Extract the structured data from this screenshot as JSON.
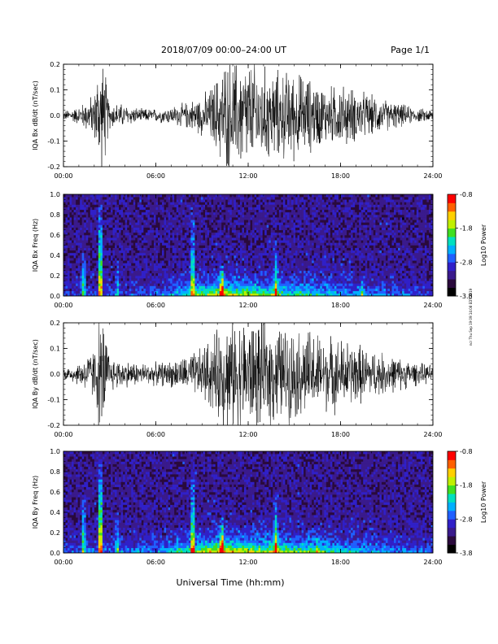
{
  "header": {
    "title": "2018/07/09   00:00–24:00 UT",
    "page": "Page 1/1"
  },
  "footer": {
    "xlabel": "Universal Time (hh:mm)",
    "side_note": "ncr Thu Sep 19 09:14:08 EDT 2019"
  },
  "colors": {
    "background": "#ffffff",
    "trace": "#000000",
    "colormap": [
      "#000000",
      "#2a0a3c",
      "#3a1a8c",
      "#3020c8",
      "#2060ff",
      "#00b0ff",
      "#00e0c0",
      "#40e020",
      "#c0f000",
      "#ffd000",
      "#ff6000",
      "#ff0000"
    ]
  },
  "chart_data": [
    {
      "id": "bx-dbdt",
      "type": "line",
      "ylabel": "IQA Bx dB/dt (nT/sec)",
      "xlim": [
        "00:00",
        "24:00"
      ],
      "xticks": [
        "00:00",
        "06:00",
        "12:00",
        "18:00",
        "24:00"
      ],
      "ylim": [
        -0.2,
        0.2
      ],
      "yticks": [
        "-0.2",
        "-0.1",
        "0.0",
        "0.1",
        "0.2"
      ],
      "envelope": {
        "hours": [
          0,
          1,
          2.0,
          2.3,
          2.6,
          3,
          4,
          5,
          6,
          7,
          8,
          9,
          9.5,
          10,
          10.5,
          11,
          12,
          13,
          14,
          15,
          16,
          17,
          18,
          19,
          20,
          21,
          22,
          23,
          24
        ],
        "amplitude": [
          0.02,
          0.04,
          0.1,
          0.25,
          0.25,
          0.06,
          0.05,
          0.03,
          0.03,
          0.04,
          0.06,
          0.09,
          0.12,
          0.18,
          0.25,
          0.25,
          0.25,
          0.22,
          0.2,
          0.2,
          0.17,
          0.13,
          0.14,
          0.12,
          0.09,
          0.07,
          0.05,
          0.03,
          0.03
        ]
      }
    },
    {
      "id": "bx-spectrogram",
      "type": "heatmap",
      "ylabel": "IQA Bx Freq (Hz)",
      "xlim": [
        "00:00",
        "24:00"
      ],
      "xticks": [
        "00:00",
        "06:00",
        "12:00",
        "18:00",
        "24:00"
      ],
      "ylim": [
        0.0,
        1.0
      ],
      "yticks": [
        "0.0",
        "0.2",
        "0.4",
        "0.6",
        "0.8",
        "1.0"
      ],
      "colorbar": {
        "label": "Log10 Power",
        "range": [
          -3.8,
          -0.8
        ],
        "ticks": [
          "-0.8",
          "-1.8",
          "-2.8",
          "-3.8"
        ]
      },
      "bursts": [
        {
          "hour": 1.3,
          "strength": 0.5,
          "reach": 0.5
        },
        {
          "hour": 2.4,
          "strength": 0.9,
          "reach": 1.0
        },
        {
          "hour": 3.5,
          "strength": 0.35,
          "reach": 0.35
        },
        {
          "hour": 8.4,
          "strength": 0.65,
          "reach": 0.9
        },
        {
          "hour": 10.3,
          "strength": 0.8,
          "reach": 0.3
        },
        {
          "hour": 13.8,
          "strength": 0.5,
          "reach": 0.55
        },
        {
          "hour": 19.4,
          "strength": 0.3,
          "reach": 0.2
        }
      ],
      "band": {
        "hours": [
          0,
          6,
          8,
          10,
          12,
          16,
          20,
          24
        ],
        "strength": [
          0.1,
          0.15,
          0.35,
          0.55,
          0.5,
          0.35,
          0.2,
          0.1
        ]
      }
    },
    {
      "id": "by-dbdt",
      "type": "line",
      "ylabel": "IQA By dB/dt (nT/sec)",
      "xlim": [
        "00:00",
        "24:00"
      ],
      "xticks": [
        "00:00",
        "06:00",
        "12:00",
        "18:00",
        "24:00"
      ],
      "ylim": [
        -0.2,
        0.2
      ],
      "yticks": [
        "-0.2",
        "-0.1",
        "0.0",
        "0.1",
        "0.2"
      ],
      "envelope": {
        "hours": [
          0,
          1,
          2.0,
          2.3,
          2.6,
          3,
          4,
          5,
          6,
          7,
          8,
          9,
          9.5,
          10,
          10.5,
          11,
          12,
          13,
          14,
          15,
          16,
          17,
          18,
          19,
          20,
          21,
          22,
          23,
          24
        ],
        "amplitude": [
          0.03,
          0.05,
          0.12,
          0.25,
          0.25,
          0.08,
          0.06,
          0.05,
          0.05,
          0.06,
          0.08,
          0.12,
          0.16,
          0.2,
          0.25,
          0.25,
          0.25,
          0.25,
          0.22,
          0.2,
          0.2,
          0.17,
          0.16,
          0.14,
          0.11,
          0.09,
          0.07,
          0.05,
          0.04
        ]
      }
    },
    {
      "id": "by-spectrogram",
      "type": "heatmap",
      "ylabel": "IQA By Freq (Hz)",
      "xlim": [
        "00:00",
        "24:00"
      ],
      "xticks": [
        "00:00",
        "06:00",
        "12:00",
        "18:00",
        "24:00"
      ],
      "ylim": [
        0.0,
        1.0
      ],
      "yticks": [
        "0.0",
        "0.2",
        "0.4",
        "0.6",
        "0.8",
        "1.0"
      ],
      "colorbar": {
        "label": "Log10 Power",
        "range": [
          -3.8,
          -0.8
        ],
        "ticks": [
          "-0.8",
          "-1.8",
          "-2.8",
          "-3.8"
        ]
      },
      "bursts": [
        {
          "hour": 1.3,
          "strength": 0.55,
          "reach": 0.6
        },
        {
          "hour": 2.4,
          "strength": 0.95,
          "reach": 1.0
        },
        {
          "hour": 3.5,
          "strength": 0.4,
          "reach": 0.4
        },
        {
          "hour": 8.4,
          "strength": 0.7,
          "reach": 0.95
        },
        {
          "hour": 10.3,
          "strength": 0.85,
          "reach": 0.35
        },
        {
          "hour": 13.8,
          "strength": 0.55,
          "reach": 0.6
        },
        {
          "hour": 16.5,
          "strength": 0.3,
          "reach": 0.2
        }
      ],
      "band": {
        "hours": [
          0,
          6,
          8,
          10,
          12,
          16,
          20,
          24
        ],
        "strength": [
          0.15,
          0.2,
          0.4,
          0.6,
          0.55,
          0.4,
          0.25,
          0.15
        ]
      }
    }
  ]
}
